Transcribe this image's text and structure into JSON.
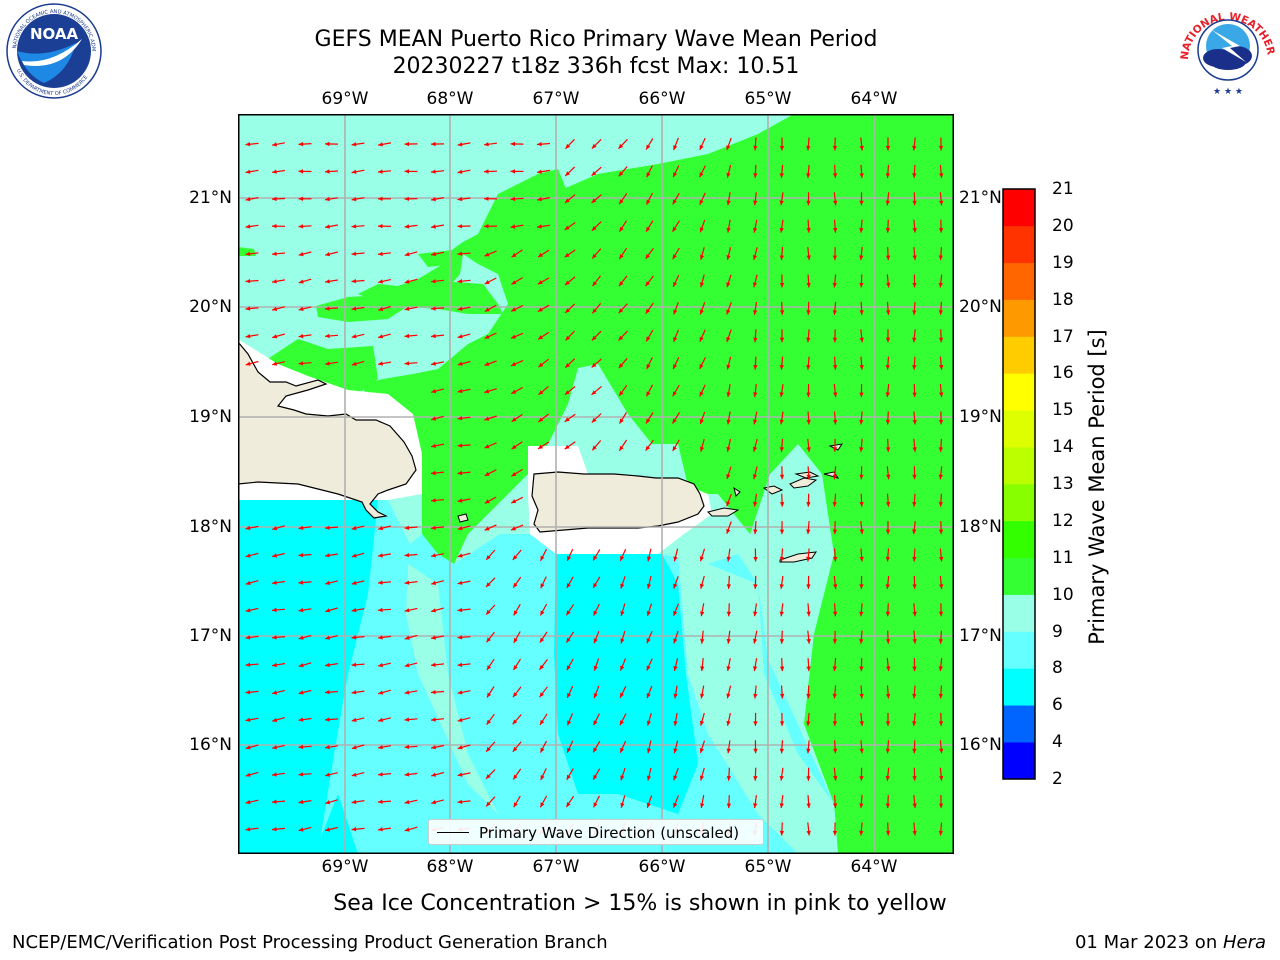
{
  "header": {
    "title": "GEFS MEAN Puerto Rico Primary Wave Mean Period",
    "subtitle": "20230227 t18z 336h fcst   Max: 10.51"
  },
  "logos": {
    "noaa": {
      "word": "NOAA",
      "ring_text": "NATIONAL OCEANIC AND ATMOSPHERIC ADMINISTRATION",
      "bottom_text": "U.S. DEPARTMENT OF COMMERCE"
    },
    "nws": {
      "ring_text": "NATIONAL WEATHER SERVICE"
    }
  },
  "map": {
    "lon_labels": [
      "69°W",
      "68°W",
      "67°W",
      "66°W",
      "65°W",
      "64°W"
    ],
    "lat_labels": [
      "21°N",
      "20°N",
      "19°N",
      "18°N",
      "17°N",
      "16°N"
    ],
    "legend_label": "Primary Wave Direction (unscaled)",
    "arrow_color": "#ff0000",
    "land_color": "#efecdc",
    "grid": true
  },
  "colorbar": {
    "label": "Primary Wave Mean Period [s]",
    "ticks": [
      "2",
      "4",
      "6",
      "8",
      "9",
      "10",
      "11",
      "12",
      "13",
      "14",
      "15",
      "16",
      "17",
      "18",
      "19",
      "20",
      "21"
    ],
    "colors": [
      "#0000ff",
      "#0064ff",
      "#00ffff",
      "#66ffff",
      "#99ffe6",
      "#33ff33",
      "#33ff00",
      "#88ff00",
      "#bbff00",
      "#ddff00",
      "#ffff00",
      "#ffcc00",
      "#ff9900",
      "#ff6600",
      "#ff3300",
      "#ff0000"
    ]
  },
  "note": "Sea Ice Concentration > 15% is shown in pink to yellow",
  "footer": {
    "left": "NCEP/EMC/Verification Post Processing Product Generation Branch",
    "right_prefix": "01 Mar 2023 on ",
    "right_host": "Hera"
  }
}
